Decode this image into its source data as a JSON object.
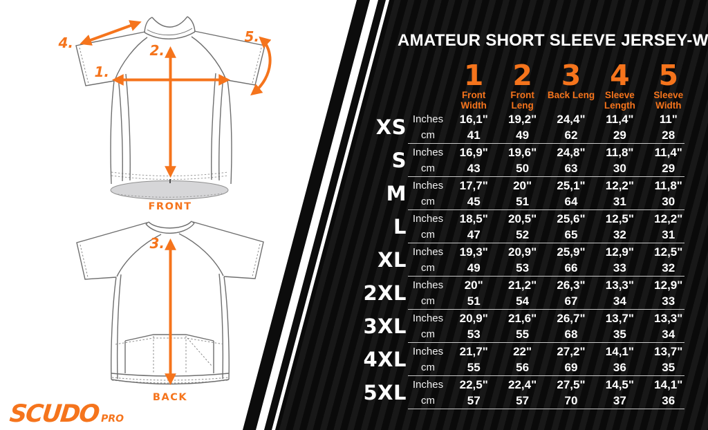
{
  "title": "AMATEUR SHORT SLEEVE JERSEY-WOMAN",
  "brand": {
    "name": "SCUDO",
    "sub": "PRO"
  },
  "diagram": {
    "front_label": "FRONT",
    "back_label": "BACK",
    "markers": {
      "m1": "1.",
      "m2": "2.",
      "m3": "3.",
      "m4": "4.",
      "m5": "5."
    }
  },
  "measure_columns": [
    {
      "num": "1",
      "label": "Front Width"
    },
    {
      "num": "2",
      "label": "Front Leng"
    },
    {
      "num": "3",
      "label": "Back Leng"
    },
    {
      "num": "4",
      "label": "Sleeve Length"
    },
    {
      "num": "5",
      "label": "Sleeve Width"
    }
  ],
  "unit_labels": {
    "inches": "Inches",
    "cm": "cm"
  },
  "sizes": [
    {
      "size": "XS",
      "inches": [
        "16,1\"",
        "19,2\"",
        "24,4\"",
        "11,4\"",
        "11\""
      ],
      "cm": [
        "41",
        "49",
        "62",
        "29",
        "28"
      ]
    },
    {
      "size": "S",
      "inches": [
        "16,9\"",
        "19,6\"",
        "24,8\"",
        "11,8\"",
        "11,4\""
      ],
      "cm": [
        "43",
        "50",
        "63",
        "30",
        "29"
      ]
    },
    {
      "size": "M",
      "inches": [
        "17,7\"",
        "20\"",
        "25,1\"",
        "12,2\"",
        "11,8\""
      ],
      "cm": [
        "45",
        "51",
        "64",
        "31",
        "30"
      ]
    },
    {
      "size": "L",
      "inches": [
        "18,5\"",
        "20,5\"",
        "25,6\"",
        "12,5\"",
        "12,2\""
      ],
      "cm": [
        "47",
        "52",
        "65",
        "32",
        "31"
      ]
    },
    {
      "size": "XL",
      "inches": [
        "19,3\"",
        "20,9\"",
        "25,9\"",
        "12,9\"",
        "12,5\""
      ],
      "cm": [
        "49",
        "53",
        "66",
        "33",
        "32"
      ]
    },
    {
      "size": "2XL",
      "inches": [
        "20\"",
        "21,2\"",
        "26,3\"",
        "13,3\"",
        "12,9\""
      ],
      "cm": [
        "51",
        "54",
        "67",
        "34",
        "33"
      ]
    },
    {
      "size": "3XL",
      "inches": [
        "20,9\"",
        "21,6\"",
        "26,7\"",
        "13,7\"",
        "13,3\""
      ],
      "cm": [
        "53",
        "55",
        "68",
        "35",
        "34"
      ]
    },
    {
      "size": "4XL",
      "inches": [
        "21,7\"",
        "22\"",
        "27,2\"",
        "14,1\"",
        "13,7\""
      ],
      "cm": [
        "55",
        "56",
        "69",
        "36",
        "35"
      ]
    },
    {
      "size": "5XL",
      "inches": [
        "22,5\"",
        "22,4\"",
        "27,5\"",
        "14,5\"",
        "14,1\""
      ],
      "cm": [
        "57",
        "57",
        "70",
        "37",
        "36"
      ]
    }
  ],
  "colors": {
    "accent": "#F5741C",
    "panel": "#0A0A0A",
    "panel_stripe": "#181818",
    "background": "#FFFFFF",
    "text_light": "#FFFFFF",
    "outline_gray": "#6E6E6E",
    "hem_gray": "#D6D6D8"
  }
}
